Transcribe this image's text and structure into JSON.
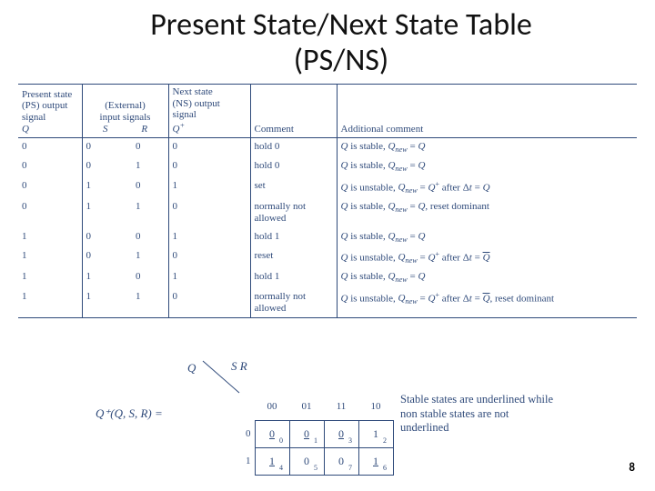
{
  "title_line1": "Present State/Next State Table",
  "title_line2": "(PS/NS)",
  "headers": {
    "ps1": "Present state",
    "ps2": "(PS) output signal",
    "ps3": "Q",
    "ext1": "(External)",
    "ext2": "input signals",
    "ext3s": "S",
    "ext3r": "R",
    "ns1": "Next state",
    "ns2": "(NS) output signal",
    "ns3": "Q",
    "ns3sup": "+",
    "comment": "Comment",
    "addl": "Additional comment"
  },
  "rows": [
    {
      "q": "0",
      "s": "0",
      "r": "0",
      "qp": "0",
      "c": "hold 0",
      "ac": "Q is stable, Q_new = Q"
    },
    {
      "q": "0",
      "s": "0",
      "r": "1",
      "qp": "0",
      "c": "hold 0",
      "ac": "Q is stable, Q_new = Q"
    },
    {
      "q": "0",
      "s": "1",
      "r": "0",
      "qp": "1",
      "c": "set",
      "ac": "Q is unstable, Q_new = Q+ after Δt = Q"
    },
    {
      "q": "0",
      "s": "1",
      "r": "1",
      "qp": "0",
      "c": "normally not\nallowed",
      "ac": "Q is stable, Q_new = Q, reset dominant"
    },
    {
      "q": "1",
      "s": "0",
      "r": "0",
      "qp": "1",
      "c": "hold 1",
      "ac": "Q is stable, Q_new = Q"
    },
    {
      "q": "1",
      "s": "0",
      "r": "1",
      "qp": "0",
      "c": "reset",
      "ac": "Q is unstable, Q_new = Q+ after Δt = Q̄"
    },
    {
      "q": "1",
      "s": "1",
      "r": "0",
      "qp": "1",
      "c": "hold 1",
      "ac": "Q is stable, Q_new = Q"
    },
    {
      "q": "1",
      "s": "1",
      "r": "1",
      "qp": "0",
      "c": "normally not\nallowed",
      "ac": "Q is unstable, Q_new = Q+ after Δt = Q̄, reset dominant"
    }
  ],
  "kmap": {
    "lhs": "Q⁺(Q, S, R) =",
    "q_label": "Q",
    "sr_label": "S R",
    "col_labels": [
      "00",
      "01",
      "11",
      "10"
    ],
    "row_labels": [
      "0",
      "1"
    ],
    "cells": [
      [
        {
          "v": "0",
          "sub": "0",
          "u": true
        },
        {
          "v": "0",
          "sub": "1",
          "u": true
        },
        {
          "v": "0",
          "sub": "3",
          "u": true
        },
        {
          "v": "1",
          "sub": "2",
          "u": false
        }
      ],
      [
        {
          "v": "1",
          "sub": "4",
          "u": true
        },
        {
          "v": "0",
          "sub": "5",
          "u": false
        },
        {
          "v": "0",
          "sub": "7",
          "u": false
        },
        {
          "v": "1",
          "sub": "6",
          "u": true
        }
      ]
    ],
    "note": "Stable states are underlined while non stable states are not underlined"
  },
  "page_number": "8",
  "colors": {
    "text": "#2f4a7a",
    "rule": "#2f4a7a"
  }
}
